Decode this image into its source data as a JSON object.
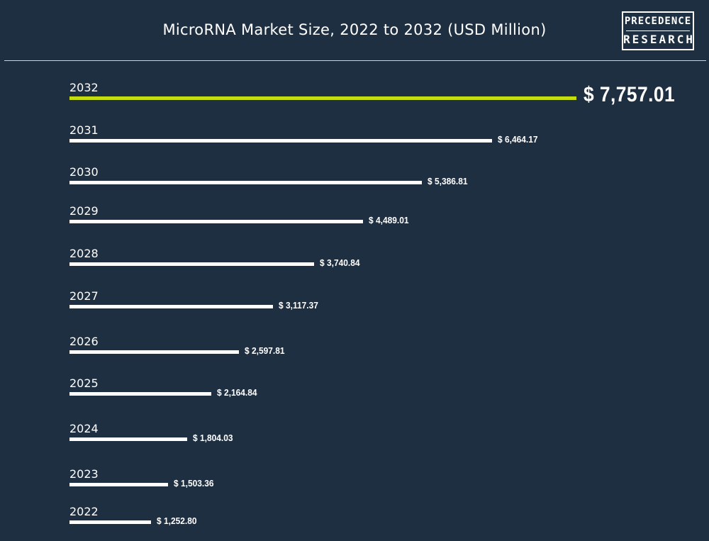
{
  "brand": {
    "line1": "PRECEDENCE",
    "line2": "RESEARCH"
  },
  "colors": {
    "background": "#1f2f42",
    "bar": "#ffffff",
    "highlight_bar": "#c5dc0e",
    "text": "#ffffff"
  },
  "chart_data": {
    "type": "bar",
    "orientation": "horizontal",
    "title": "MicroRNA Market Size, 2022 to 2032 (USD Million)",
    "categories": [
      "2032",
      "2031",
      "2030",
      "2029",
      "2028",
      "2027",
      "2026",
      "2025",
      "2024",
      "2023",
      "2022"
    ],
    "values": [
      7757.01,
      6464.17,
      5386.81,
      4489.01,
      3740.84,
      3117.37,
      2597.81,
      2164.84,
      1804.03,
      1503.36,
      1252.8
    ],
    "value_labels": [
      "$ 7,757.01",
      "$ 6,464.17",
      "$ 5,386.81",
      "$ 4,489.01",
      "$ 3,740.84",
      "$ 3,117.37",
      "$ 2,597.81",
      "$ 2,164.84",
      "$ 1,804.03",
      "$ 1,503.36",
      "$ 1,252.80"
    ],
    "highlighted_category": "2032",
    "xlim": [
      0,
      7757.01
    ],
    "grid": false,
    "legend": "none"
  }
}
